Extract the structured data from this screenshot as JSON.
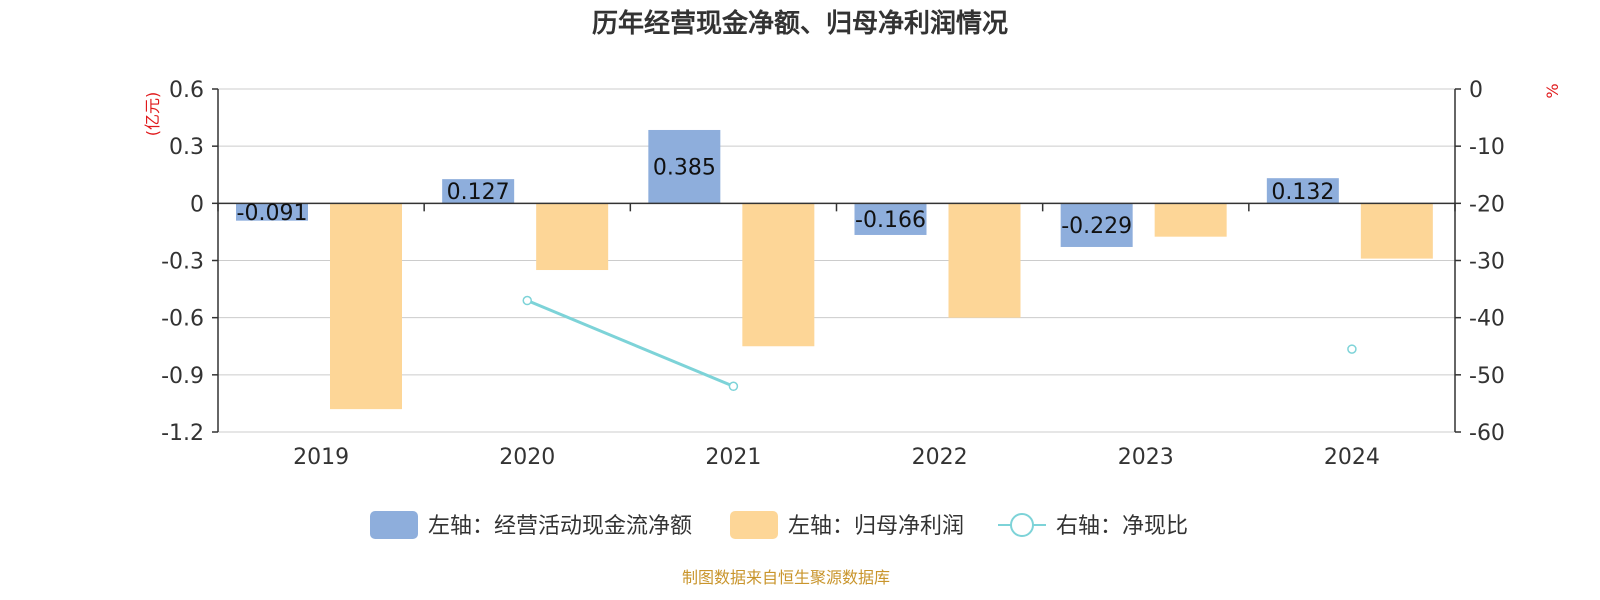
{
  "chart_data": {
    "type": "bar",
    "title": "历年经营现金净额、归母净利润情况",
    "categories": [
      "2019",
      "2020",
      "2021",
      "2022",
      "2023",
      "2024"
    ],
    "left_axis": {
      "unit": "(亿元)",
      "ylim": [
        -1.2,
        0.6
      ],
      "ticks": [
        "0.6",
        "0.3",
        "0",
        "-0.3",
        "-0.6",
        "-0.9",
        "-1.2"
      ]
    },
    "right_axis": {
      "unit": "%",
      "ylim": [
        -60,
        0
      ],
      "ticks": [
        "0",
        "-10",
        "-20",
        "-30",
        "-40",
        "-50",
        "-60"
      ]
    },
    "series": [
      {
        "name": "左轴：经营活动现金流净额",
        "type": "bar",
        "axis": "left",
        "color": "#8eaedc",
        "values": [
          -0.091,
          0.127,
          0.385,
          -0.166,
          -0.229,
          0.132
        ],
        "labels": [
          "-0.091",
          "0.127",
          "0.385",
          "-0.166",
          "-0.229",
          "0.132"
        ]
      },
      {
        "name": "左轴：归母净利润",
        "type": "bar",
        "axis": "left",
        "color": "#fdd697",
        "values": [
          -1.08,
          -0.35,
          -0.75,
          -0.6,
          -0.175,
          -0.29
        ]
      },
      {
        "name": "右轴：净现比",
        "type": "line",
        "axis": "right",
        "color": "#7dd3d8",
        "values": [
          null,
          -37,
          -52,
          null,
          null,
          -45.5
        ]
      }
    ],
    "grid": true,
    "legend": "bottom",
    "source": "制图数据来自恒生聚源数据库"
  }
}
